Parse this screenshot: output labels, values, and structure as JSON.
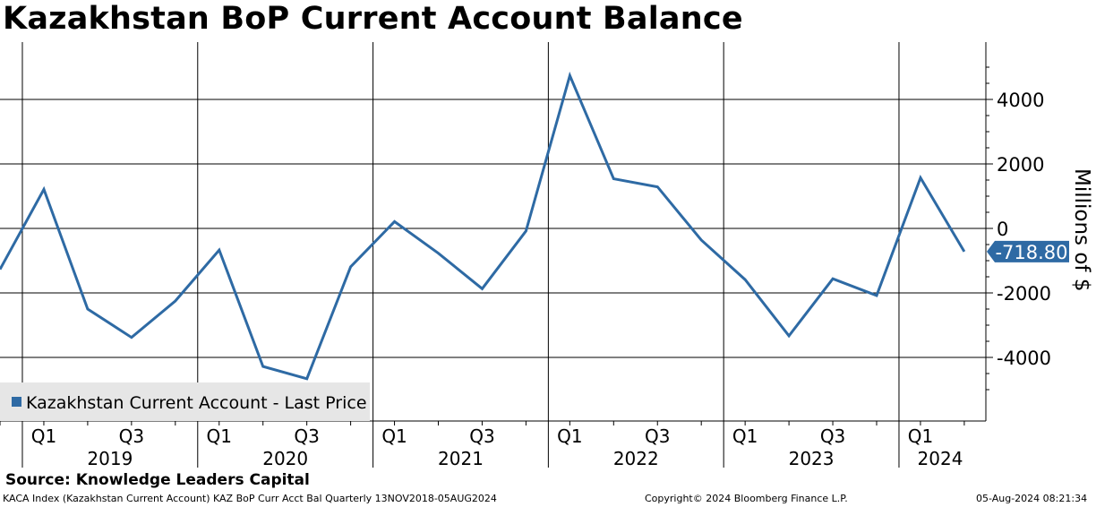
{
  "header": {
    "title": "Kazakhstan BoP Current Account Balance"
  },
  "chart_data": {
    "type": "line",
    "title": "Kazakhstan BoP Current Account Balance",
    "ylabel": "Millions of $",
    "y_axis_side": "right",
    "ylim": [
      -5900,
      5650
    ],
    "yticks": [
      -4000,
      -2000,
      0,
      2000,
      4000
    ],
    "grid": true,
    "legend_position": "bottom-left",
    "x": [
      "2018Q4",
      "2019Q1",
      "2019Q2",
      "2019Q3",
      "2019Q4",
      "2020Q1",
      "2020Q2",
      "2020Q3",
      "2020Q4",
      "2021Q1",
      "2021Q2",
      "2021Q3",
      "2021Q4",
      "2022Q1",
      "2022Q2",
      "2022Q3",
      "2022Q4",
      "2023Q1",
      "2023Q2",
      "2023Q3",
      "2023Q4",
      "2024Q1",
      "2024Q2"
    ],
    "x_tick_labels": [
      {
        "at": "2019Q1",
        "label": "Q1"
      },
      {
        "at": "2019Q3",
        "label": "Q3"
      },
      {
        "at": "2020Q1",
        "label": "Q1"
      },
      {
        "at": "2020Q3",
        "label": "Q3"
      },
      {
        "at": "2021Q1",
        "label": "Q1"
      },
      {
        "at": "2021Q3",
        "label": "Q3"
      },
      {
        "at": "2022Q1",
        "label": "Q1"
      },
      {
        "at": "2022Q3",
        "label": "Q3"
      },
      {
        "at": "2023Q1",
        "label": "Q1"
      },
      {
        "at": "2023Q3",
        "label": "Q3"
      },
      {
        "at": "2024Q1",
        "label": "Q1"
      }
    ],
    "years": [
      "2019",
      "2020",
      "2021",
      "2022",
      "2023",
      "2024"
    ],
    "series": [
      {
        "name": "Kazakhstan Current Account - Last Price",
        "color": "#2e6aa4",
        "values": [
          -1270,
          1210,
          -2500,
          -3380,
          -2250,
          -670,
          -4280,
          -4660,
          -1190,
          210,
          -770,
          -1870,
          -80,
          4740,
          1540,
          1290,
          -360,
          -1590,
          -3330,
          -1560,
          -2080,
          1570,
          -718.8
        ]
      }
    ],
    "last_value_label": "-718.80"
  },
  "footer": {
    "source": "Source: Knowledge Leaders Capital",
    "index_info": "KACA Index (Kazakhstan Current Account) KAZ BoP Curr Acct Bal  Quarterly 13NOV2018-05AUG2024",
    "copyright": "Copyright© 2024 Bloomberg Finance L.P.",
    "timestamp": "05-Aug-2024 08:21:34"
  }
}
